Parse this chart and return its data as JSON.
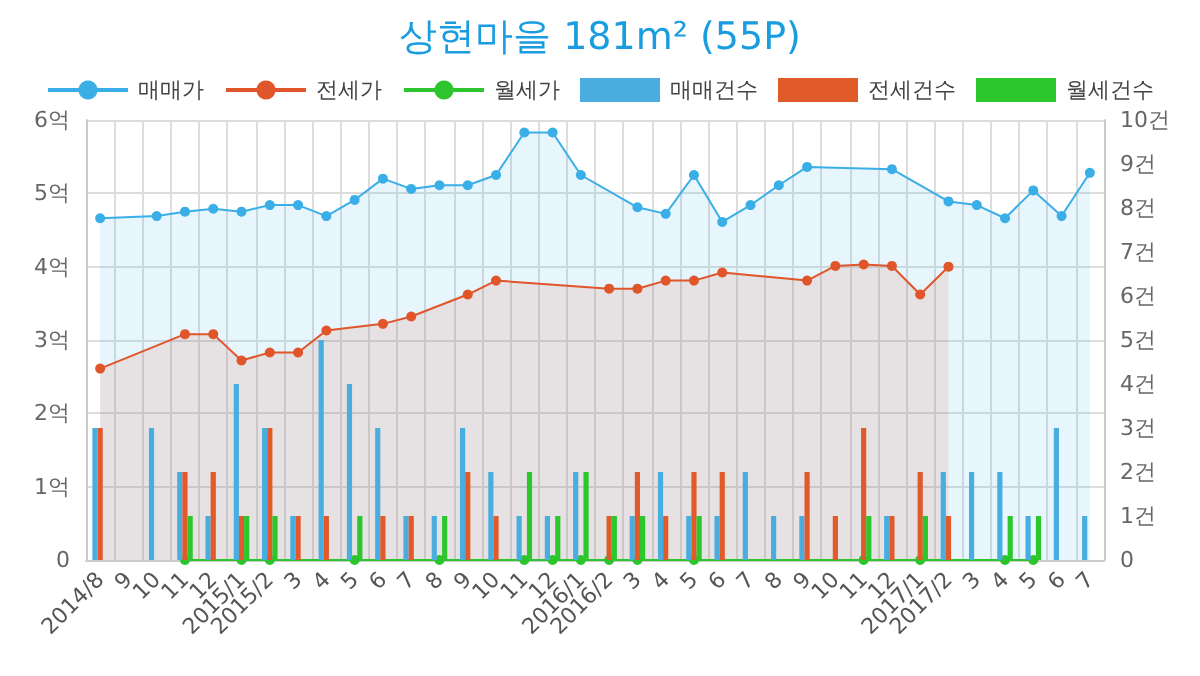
{
  "chart_data": {
    "type": "bar",
    "title": "상현마을 181m² (55P)",
    "categories": [
      "2014/8",
      "9",
      "10",
      "11",
      "12",
      "2015/1",
      "2015/2",
      "3",
      "4",
      "5",
      "6",
      "7",
      "8",
      "9",
      "10",
      "11",
      "12",
      "2016/1",
      "2016/2",
      "3",
      "4",
      "5",
      "6",
      "7",
      "8",
      "9",
      "10",
      "11",
      "12",
      "2017/1",
      "2017/2",
      "3",
      "4",
      "5",
      "6",
      "7"
    ],
    "series": [
      {
        "name": "매매가",
        "type": "area",
        "color": "#3aaee6",
        "values": [
          4.66,
          null,
          4.69,
          4.75,
          4.79,
          4.75,
          4.84,
          4.84,
          4.69,
          4.91,
          5.2,
          5.06,
          5.11,
          5.11,
          5.25,
          5.83,
          5.83,
          5.25,
          null,
          4.81,
          4.72,
          5.25,
          4.61,
          4.84,
          5.11,
          5.36,
          null,
          null,
          5.33,
          null,
          4.89,
          4.84,
          4.66,
          5.04,
          4.69,
          5.28
        ]
      },
      {
        "name": "전세가",
        "type": "area",
        "color": "#e0552a",
        "values": [
          2.61,
          null,
          null,
          3.08,
          3.08,
          2.72,
          2.83,
          2.83,
          3.13,
          null,
          3.22,
          3.32,
          null,
          3.62,
          3.81,
          null,
          null,
          null,
          3.7,
          3.7,
          3.81,
          3.81,
          3.92,
          null,
          null,
          3.81,
          4.01,
          4.03,
          4.01,
          3.62,
          4.0,
          null,
          null,
          null,
          null,
          null
        ]
      },
      {
        "name": "월세가",
        "type": "line",
        "color": "#2dc52d",
        "values": [
          null,
          null,
          null,
          0,
          null,
          0,
          0,
          null,
          null,
          0,
          null,
          null,
          0,
          null,
          null,
          0,
          0,
          0,
          0,
          0,
          null,
          0,
          null,
          null,
          null,
          null,
          null,
          0,
          null,
          0,
          null,
          null,
          0,
          0,
          null,
          null
        ]
      },
      {
        "name": "매매건수",
        "axis": "y2",
        "color": "#4aade0",
        "values": [
          3,
          0,
          3,
          2,
          1,
          4,
          3,
          1,
          5,
          4,
          3,
          1,
          1,
          3,
          2,
          1,
          1,
          2,
          0,
          1,
          2,
          1,
          1,
          2,
          1,
          1,
          0,
          0,
          1,
          0,
          2,
          2,
          2,
          1,
          3,
          1
        ]
      },
      {
        "name": "전세건수",
        "axis": "y2",
        "color": "#e05a2a",
        "values": [
          3,
          0,
          0,
          2,
          2,
          1,
          3,
          1,
          1,
          0,
          1,
          1,
          0,
          2,
          1,
          0,
          0,
          0,
          1,
          2,
          1,
          2,
          2,
          0,
          0,
          2,
          1,
          3,
          1,
          2,
          1,
          0,
          0,
          0,
          0,
          0
        ]
      },
      {
        "name": "월세건수",
        "axis": "y2",
        "color": "#2cc72c",
        "values": [
          0,
          0,
          0,
          1,
          0,
          1,
          1,
          0,
          0,
          1,
          0,
          0,
          1,
          0,
          0,
          2,
          1,
          2,
          1,
          1,
          0,
          1,
          0,
          0,
          0,
          0,
          0,
          1,
          0,
          1,
          0,
          0,
          1,
          1,
          0,
          0
        ]
      }
    ],
    "ylim": [
      0,
      6
    ],
    "yticks": [
      {
        "value": 0,
        "label": "0"
      },
      {
        "value": 1,
        "label": "1억"
      },
      {
        "value": 2,
        "label": "2억"
      },
      {
        "value": 3,
        "label": "3억"
      },
      {
        "value": 4,
        "label": "4억"
      },
      {
        "value": 5,
        "label": "5억"
      },
      {
        "value": 6,
        "label": "6억"
      }
    ],
    "y2lim": [
      0,
      10
    ],
    "y2ticks": [
      {
        "value": 0,
        "label": "0"
      },
      {
        "value": 1,
        "label": "1건"
      },
      {
        "value": 2,
        "label": "2건"
      },
      {
        "value": 3,
        "label": "3건"
      },
      {
        "value": 4,
        "label": "4건"
      },
      {
        "value": 5,
        "label": "5건"
      },
      {
        "value": 6,
        "label": "6건"
      },
      {
        "value": 7,
        "label": "7건"
      },
      {
        "value": 8,
        "label": "8건"
      },
      {
        "value": 9,
        "label": "9건"
      },
      {
        "value": 10,
        "label": "10건"
      }
    ],
    "grid": true,
    "legend": "top",
    "marker": "circle"
  }
}
